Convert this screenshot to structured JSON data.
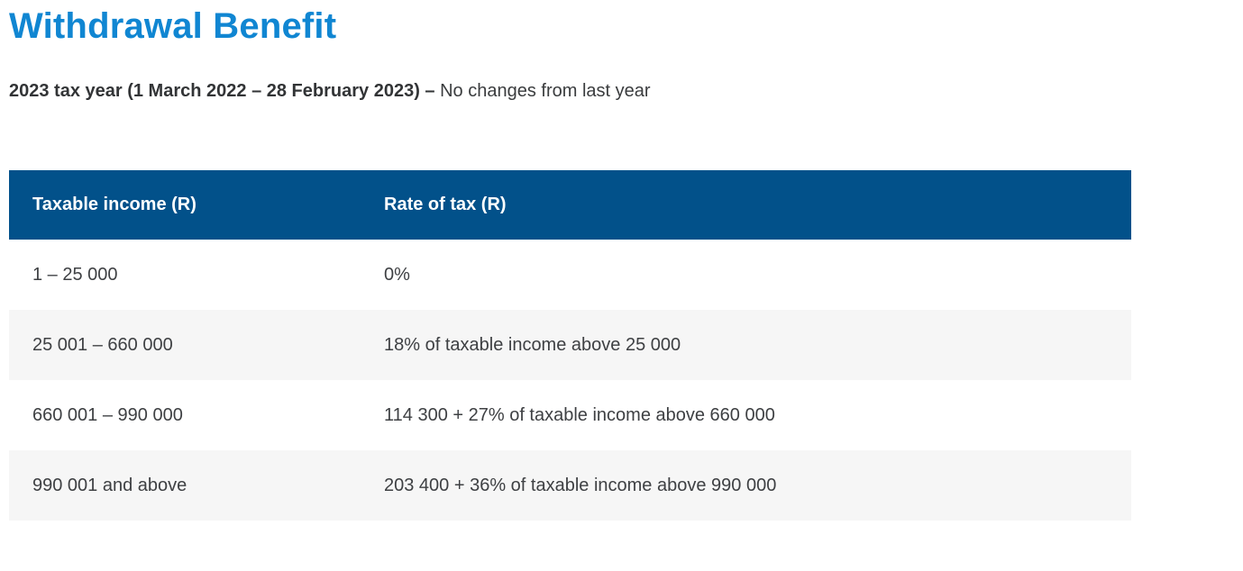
{
  "page": {
    "title": "Withdrawal Benefit",
    "subtitle": {
      "bold": "2023 tax year (1 March 2022 – 28 February 2023) –",
      "regular": "No changes from last year"
    }
  },
  "table": {
    "headers": [
      "Taxable income (R)",
      "Rate of tax (R)"
    ],
    "rows": [
      {
        "income": "1 – 25 000",
        "rate": "0%"
      },
      {
        "income": "25 001 – 660 000",
        "rate": "18% of taxable income above 25 000"
      },
      {
        "income": "660 001 – 990 000",
        "rate": "114 300 + 27% of taxable income above 660 000"
      },
      {
        "income": "990 001 and above",
        "rate": "203 400 + 36% of taxable income above 990 000"
      }
    ]
  },
  "colors": {
    "title_blue": "#1086d2",
    "table_header_blue": "#02518a",
    "alt_row_gray": "#f6f6f6",
    "body_text": "#3e4043"
  }
}
